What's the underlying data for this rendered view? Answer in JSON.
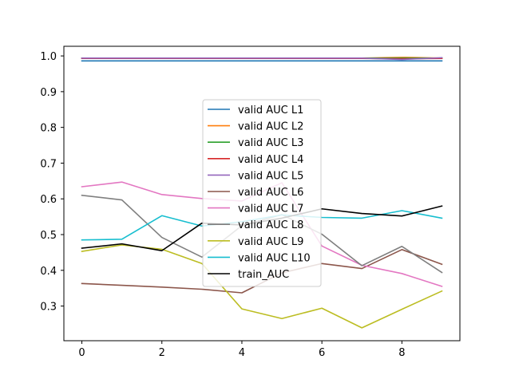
{
  "chart_data": {
    "type": "line",
    "title": "",
    "xlabel": "",
    "ylabel": "",
    "x": [
      0,
      1,
      2,
      3,
      4,
      5,
      6,
      7,
      8,
      9
    ],
    "xlim": [
      -0.45,
      9.45
    ],
    "ylim": [
      0.203,
      1.027
    ],
    "xticks": [
      0,
      2,
      4,
      6,
      8
    ],
    "yticks": [
      0.3,
      0.4,
      0.5,
      0.6,
      0.7,
      0.8,
      0.9,
      1.0
    ],
    "xtick_labels": [
      "0",
      "2",
      "4",
      "6",
      "8"
    ],
    "ytick_labels": [
      "0.3",
      "0.4",
      "0.5",
      "0.6",
      "0.7",
      "0.8",
      "0.9",
      "1.0"
    ],
    "grid": false,
    "legend_position": "center",
    "series": [
      {
        "name": "valid AUC L1",
        "color": "#1f77b4",
        "values": [
          0.986,
          0.986,
          0.986,
          0.986,
          0.986,
          0.986,
          0.986,
          0.986,
          0.986,
          0.986
        ]
      },
      {
        "name": "valid AUC L2",
        "color": "#ff7f0e",
        "values": [
          0.994,
          0.994,
          0.994,
          0.994,
          0.994,
          0.994,
          0.994,
          0.994,
          0.996,
          0.994
        ]
      },
      {
        "name": "valid AUC L3",
        "color": "#2ca02c",
        "values": [
          0.994,
          0.994,
          0.993,
          0.994,
          0.994,
          0.994,
          0.994,
          0.994,
          0.994,
          0.994
        ]
      },
      {
        "name": "valid AUC L4",
        "color": "#d62728",
        "values": [
          0.993,
          0.993,
          0.993,
          0.993,
          0.993,
          0.993,
          0.993,
          0.993,
          0.992,
          0.993
        ]
      },
      {
        "name": "valid AUC L5",
        "color": "#9467bd",
        "values": [
          0.994,
          0.994,
          0.994,
          0.994,
          0.994,
          0.994,
          0.994,
          0.994,
          0.99,
          0.995
        ]
      },
      {
        "name": "valid AUC L6",
        "color": "#8c564b",
        "values": [
          0.363,
          0.358,
          0.353,
          0.347,
          0.337,
          0.393,
          0.419,
          0.405,
          0.458,
          0.417
        ]
      },
      {
        "name": "valid AUC L7",
        "color": "#e377c2",
        "values": [
          0.634,
          0.647,
          0.612,
          0.601,
          0.594,
          0.645,
          0.468,
          0.414,
          0.391,
          0.355
        ]
      },
      {
        "name": "valid AUC L8",
        "color": "#7f7f7f",
        "values": [
          0.61,
          0.597,
          0.492,
          0.437,
          0.525,
          0.556,
          0.501,
          0.413,
          0.467,
          0.394
        ]
      },
      {
        "name": "valid AUC L9",
        "color": "#bcbd22",
        "values": [
          0.453,
          0.471,
          0.459,
          0.419,
          0.292,
          0.265,
          0.294,
          0.239,
          0.291,
          0.342
        ]
      },
      {
        "name": "valid AUC L10",
        "color": "#17becf",
        "values": [
          0.485,
          0.487,
          0.553,
          0.524,
          0.536,
          0.555,
          0.548,
          0.546,
          0.567,
          0.546
        ]
      },
      {
        "name": "train_AUC",
        "color": "#000000",
        "values": [
          0.462,
          0.474,
          0.455,
          0.532,
          0.527,
          0.546,
          0.572,
          0.559,
          0.552,
          0.58
        ]
      }
    ]
  }
}
